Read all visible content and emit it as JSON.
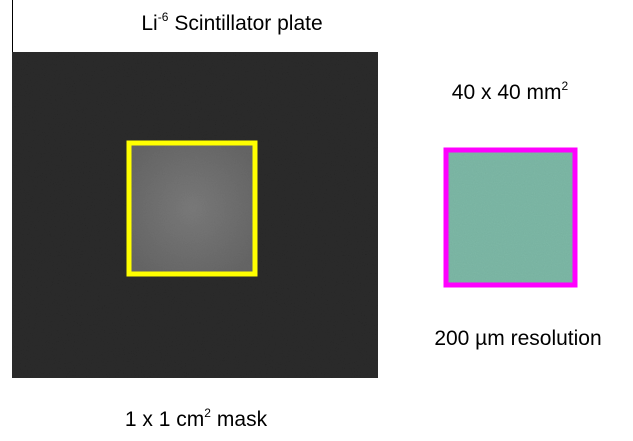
{
  "labels": {
    "plate": {
      "text": "Li",
      "superscript": "-6",
      "suffix": "Scintillator plate"
    },
    "area": {
      "text": "40 x 40 mm",
      "superscript": "2"
    },
    "resolution": {
      "text": "200 µm resolution"
    },
    "mask": {
      "text": "1 x 1 cm",
      "superscript": "2",
      "suffix": "mask"
    }
  }
}
